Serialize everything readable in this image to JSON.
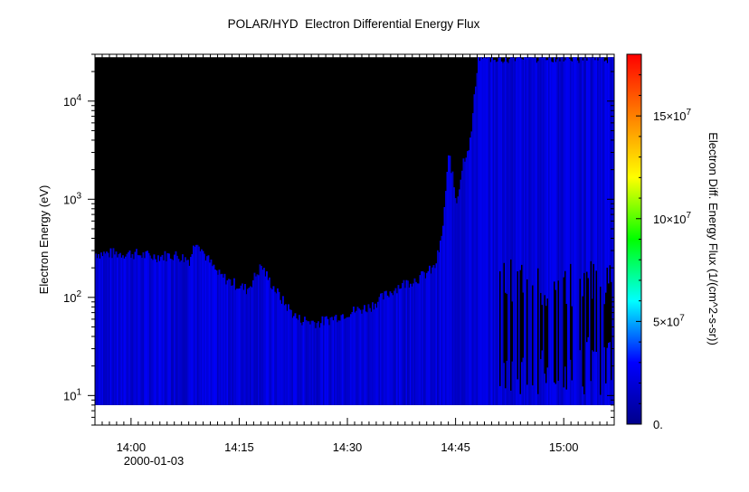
{
  "chart_data": {
    "type": "heatmap",
    "title": "POLAR/HYD  Electron Differential Energy Flux",
    "xlabel": "",
    "ylabel": "Electron Energy (eV)",
    "y_scale": "log",
    "ylim_eV": [
      5,
      30000
    ],
    "x_time_range": [
      "13:55",
      "15:07"
    ],
    "x_ticks": [
      "14:00",
      "14:15",
      "14:30",
      "14:45",
      "15:00"
    ],
    "x_date_label": "2000-01-03",
    "y_ticks": [
      {
        "base": "10",
        "exp": "1",
        "value": 10
      },
      {
        "base": "10",
        "exp": "2",
        "value": 100
      },
      {
        "base": "10",
        "exp": "3",
        "value": 1000
      },
      {
        "base": "10",
        "exp": "4",
        "value": 10000
      }
    ],
    "colorbar": {
      "label": "Electron Diff. Energy Flux (1/(cm^2-s-sr))",
      "range": [
        0,
        180000000
      ],
      "ticks": [
        {
          "text": "0.",
          "exp": "",
          "value": 0
        },
        {
          "text": "5×10",
          "exp": "7",
          "value": 50000000
        },
        {
          "text": "10×10",
          "exp": "7",
          "value": 100000000
        },
        {
          "text": "15×10",
          "exp": "7",
          "value": 150000000
        }
      ],
      "colormap": [
        "#00008b",
        "#0000ff",
        "#00ffff",
        "#00ff00",
        "#ffff00",
        "#ff8000",
        "#ff0000"
      ]
    },
    "data_energy_range_eV": [
      8,
      28000
    ],
    "typical_flux_in_data": 20000000,
    "upper_boundary_of_flux_eV": [
      {
        "t": "13:55",
        "e": 280
      },
      {
        "t": "14:00",
        "e": 280
      },
      {
        "t": "14:03",
        "e": 260
      },
      {
        "t": "14:06",
        "e": 270
      },
      {
        "t": "14:08",
        "e": 240
      },
      {
        "t": "14:09",
        "e": 400
      },
      {
        "t": "14:10",
        "e": 280
      },
      {
        "t": "14:12",
        "e": 170
      },
      {
        "t": "14:14",
        "e": 140
      },
      {
        "t": "14:16",
        "e": 120
      },
      {
        "t": "14:18",
        "e": 210
      },
      {
        "t": "14:19",
        "e": 150
      },
      {
        "t": "14:21",
        "e": 90
      },
      {
        "t": "14:23",
        "e": 60
      },
      {
        "t": "14:26",
        "e": 55
      },
      {
        "t": "14:30",
        "e": 70
      },
      {
        "t": "14:33",
        "e": 80
      },
      {
        "t": "14:37",
        "e": 130
      },
      {
        "t": "14:40",
        "e": 160
      },
      {
        "t": "14:42",
        "e": 200
      },
      {
        "t": "14:43",
        "e": 400
      },
      {
        "t": "14:44",
        "e": 3000
      },
      {
        "t": "14:45",
        "e": 900
      },
      {
        "t": "14:46",
        "e": 2500
      },
      {
        "t": "14:47",
        "e": 4000
      },
      {
        "t": "14:48",
        "e": 28000
      },
      {
        "t": "15:07",
        "e": 28000
      }
    ],
    "low_energy_gaps_after": "14:48"
  }
}
